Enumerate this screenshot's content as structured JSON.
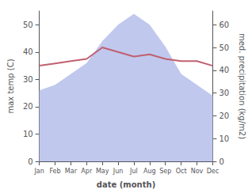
{
  "chart_data": {
    "type": "line",
    "xlabel": "date (month)",
    "ylabel": "max temp (C)",
    "y2label": "med. precipitation (kg/m2)",
    "categories": [
      "Jan",
      "Feb",
      "Mar",
      "Apr",
      "May",
      "Jun",
      "Jul",
      "Aug",
      "Sep",
      "Oct",
      "Nov",
      "Dec"
    ],
    "series": [
      {
        "type": "area",
        "color": "#c0c8ee",
        "values": [
          26,
          28,
          32,
          36,
          44,
          50,
          54,
          50,
          42,
          32,
          28,
          24
        ]
      },
      {
        "type": "line",
        "color": "#c06070",
        "axis": "y2",
        "values": [
          42,
          43,
          44,
          45,
          50,
          48,
          46,
          47,
          45,
          44,
          44,
          42
        ]
      }
    ],
    "ylim": [
      0,
      55
    ],
    "yticks": [
      0,
      10,
      20,
      30,
      40,
      50
    ],
    "y2lim": [
      0,
      66
    ],
    "y2ticks": [
      0,
      10,
      20,
      30,
      40,
      50,
      60
    ],
    "grid": false
  }
}
